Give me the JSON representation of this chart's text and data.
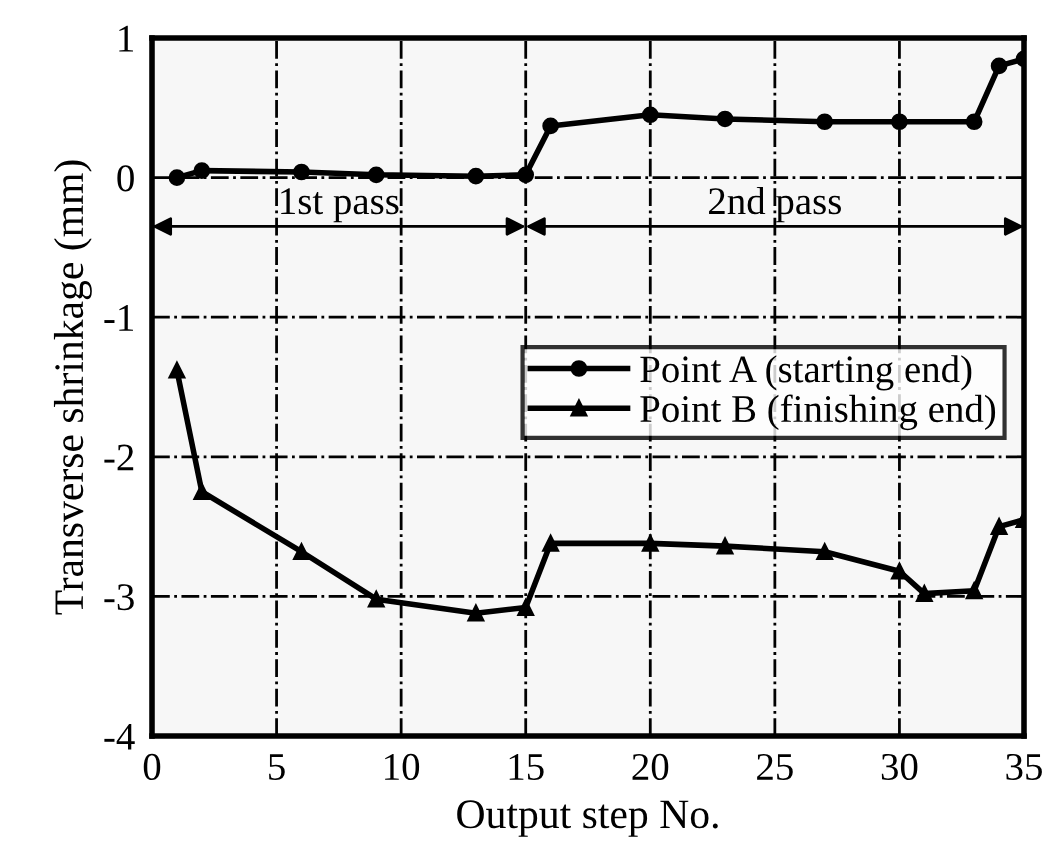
{
  "chart_data": {
    "type": "line",
    "xlabel": "Output step No.",
    "ylabel": "Transverse shrinkage (mm)",
    "xlim": [
      0,
      35
    ],
    "xticks": [
      0,
      5,
      10,
      15,
      20,
      25,
      30,
      35
    ],
    "ylim": [
      -4,
      1
    ],
    "yticks": [
      -4,
      -3,
      -2,
      -1,
      0,
      1
    ],
    "grid": true,
    "legend": "right",
    "line_style": "solid",
    "bands": [
      {
        "axis": "x",
        "from": 0,
        "to": 15,
        "label": "1st pass",
        "color": "#f7f7f7"
      },
      {
        "axis": "x",
        "from": 15,
        "to": 35,
        "label": "2nd pass",
        "color": "#f7f7f7"
      }
    ],
    "series": [
      {
        "name": "Point A (starting end)",
        "color": "#000000",
        "marker": "circle",
        "x": [
          1,
          2,
          6,
          9,
          13,
          15,
          16,
          20,
          23,
          27,
          30,
          33,
          34,
          35
        ],
        "values": [
          0,
          0.05,
          0.04,
          0.02,
          0.01,
          0.02,
          0.37,
          0.45,
          0.42,
          0.4,
          0.4,
          0.4,
          0.8,
          0.85
        ]
      },
      {
        "name": "Point B (finishing end)",
        "color": "#000000",
        "marker": "triangle",
        "x": [
          1,
          2,
          6,
          9,
          13,
          15,
          16,
          20,
          23,
          27,
          30,
          31,
          33,
          34,
          35
        ],
        "values": [
          -1.38,
          -2.25,
          -2.68,
          -3.02,
          -3.12,
          -3.08,
          -2.62,
          -2.62,
          -2.64,
          -2.68,
          -2.82,
          -2.98,
          -2.96,
          -2.5,
          -2.45
        ]
      }
    ]
  }
}
